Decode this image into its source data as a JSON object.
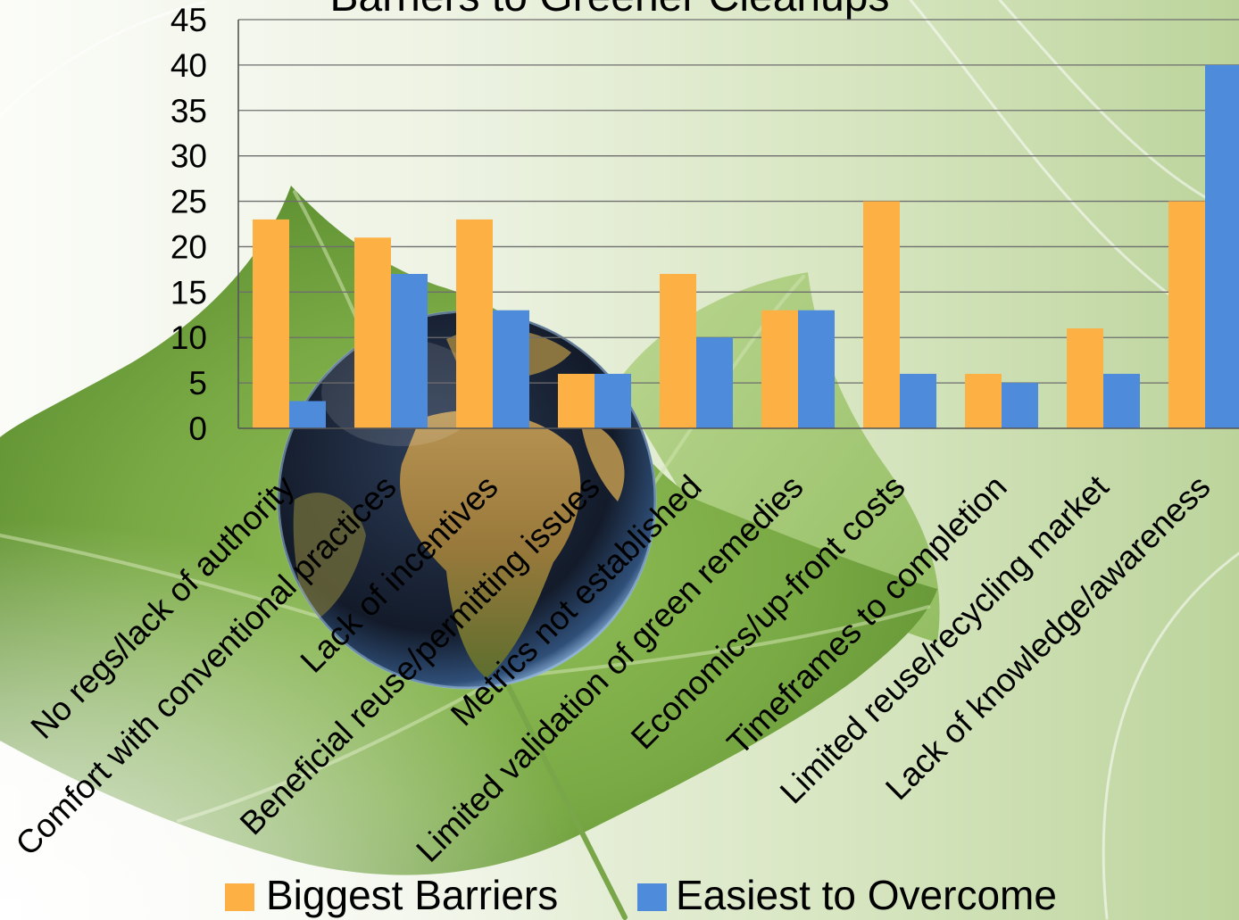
{
  "chart_data": {
    "type": "bar",
    "title": "Barriers to Greener Cleanups",
    "categories": [
      "No regs/lack of authority",
      "Comfort with conventional practices",
      "Lack of incentives",
      "Beneficial reuse/permitting issues",
      "Metrics not established",
      "Limited validation of green remedies",
      "Economics/up-front costs",
      "Timeframes to completion",
      "Limited reuse/recycling market",
      "Lack of knowledge/awareness"
    ],
    "series": [
      {
        "name": "Biggest Barriers",
        "values": [
          23,
          21,
          23,
          6,
          17,
          13,
          25,
          6,
          11,
          25
        ],
        "color": "#FDB044"
      },
      {
        "name": "Easiest to Overcome",
        "values": [
          3,
          17,
          13,
          6,
          10,
          13,
          6,
          5,
          6,
          40
        ],
        "color": "#4E8BDB"
      }
    ],
    "ylim": [
      0,
      45
    ],
    "yticks": [
      0,
      5,
      10,
      15,
      20,
      25,
      30,
      35,
      40,
      45
    ],
    "grid": true,
    "legend": "bottom"
  }
}
